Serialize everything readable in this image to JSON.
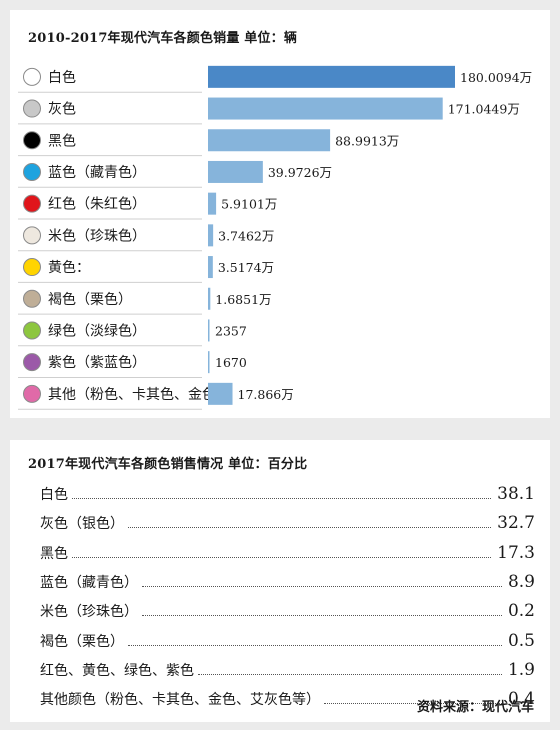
{
  "top_title": "2010-2017年现代汽车各颜色销量 单位：辆",
  "bottom_title": "2017年现代汽车各颜色销售情况 单位：百分比",
  "source": "资料来源：现代汽车",
  "chart_data": [
    {
      "type": "bar",
      "title": "2010-2017年现代汽车各颜色销量 单位：辆",
      "unit": "辆",
      "categories": [
        "白色",
        "灰色",
        "黑色",
        "蓝色（藏青色）",
        "红色（朱红色）",
        "米色（珍珠色）",
        "黄色：",
        "褐色（栗色）",
        "绿色（淡绿色）",
        "紫色（紫蓝色）",
        "其他（粉色、卡其色、金色）"
      ],
      "values": [
        1800094,
        1710449,
        889913,
        399726,
        59101,
        37462,
        35174,
        16851,
        2357,
        1670,
        178660
      ],
      "value_labels": [
        "180.0094万",
        "171.0449万",
        "88.9913万",
        "39.9726万",
        "5.9101万",
        "3.7462万",
        "3.5174万",
        "1.6851万",
        "2357",
        "1670",
        "17.866万"
      ],
      "swatch_colors": [
        "#ffffff",
        "#c8c8c8",
        "#000000",
        "#1ea3df",
        "#e0151b",
        "#eee8df",
        "#ffd400",
        "#bfae97",
        "#8dc63f",
        "#9b59a8",
        "#e06aa8"
      ],
      "bar_colors": [
        "#4a88c7",
        "#86b4db",
        "#86b4db",
        "#86b4db",
        "#86b4db",
        "#86b4db",
        "#86b4db",
        "#86b4db",
        "#86b4db",
        "#86b4db",
        "#86b4db"
      ]
    },
    {
      "type": "table",
      "title": "2017年现代汽车各颜色销售情况 单位：百分比",
      "unit": "百分比",
      "rows": [
        {
          "label": "白色",
          "value": "38.1"
        },
        {
          "label": "灰色（银色）",
          "value": "32.7"
        },
        {
          "label": "黑色",
          "value": "17.3"
        },
        {
          "label": "蓝色（藏青色）",
          "value": "8.9"
        },
        {
          "label": "米色（珍珠色）",
          "value": "0.2"
        },
        {
          "label": "褐色（栗色）",
          "value": "0.5"
        },
        {
          "label": "红色、黄色、绿色、紫色",
          "value": "1.9"
        },
        {
          "label": "其他颜色（粉色、卡其色、金色、艾灰色等）",
          "value": "0.4"
        }
      ]
    }
  ]
}
